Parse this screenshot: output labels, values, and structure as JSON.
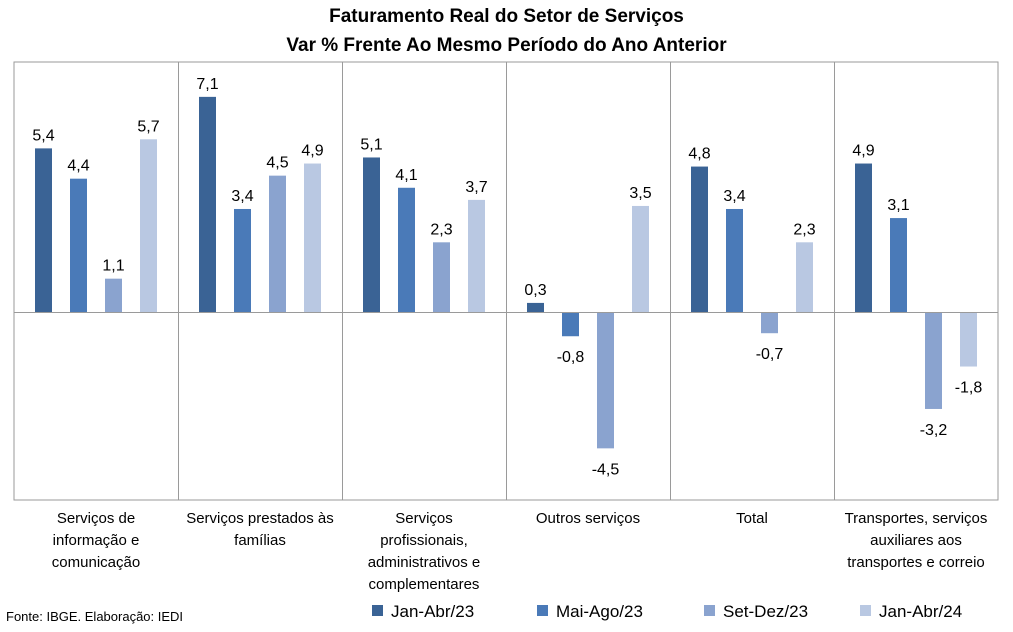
{
  "chart_data": {
    "type": "bar",
    "title": "Faturamento Real do Setor de Serviços",
    "subtitle": "Var % Frente Ao Mesmo Período do Ano Anterior",
    "categories": [
      "Serviços de informação e comunicação",
      "Serviços prestados às famílias",
      "Serviços profissionais, administrativos e complementares",
      "Outros serviços",
      "Total",
      "Transportes, serviços auxiliares aos transportes e correio"
    ],
    "series": [
      {
        "name": "Jan-Abr/23",
        "color": "#3a6395",
        "values": [
          5.4,
          7.1,
          5.1,
          0.3,
          4.8,
          4.9
        ],
        "labels": [
          "5,4",
          "7,1",
          "5,1",
          "0,3",
          "4,8",
          "4,9"
        ]
      },
      {
        "name": "Mai-Ago/23",
        "color": "#4a7ab8",
        "values": [
          4.4,
          3.4,
          4.1,
          -0.8,
          3.4,
          3.1
        ],
        "labels": [
          "4,4",
          "3,4",
          "4,1",
          "-0,8",
          "3,4",
          "3,1"
        ]
      },
      {
        "name": "Set-Dez/23",
        "color": "#8aa3cf",
        "values": [
          1.1,
          4.5,
          2.3,
          -4.5,
          -0.7,
          -3.2
        ],
        "labels": [
          "1,1",
          "4,5",
          "2,3",
          "-4,5",
          "-0,7",
          "-3,2"
        ]
      },
      {
        "name": "Jan-Abr/24",
        "color": "#b9c8e2",
        "values": [
          5.7,
          4.9,
          3.7,
          3.5,
          2.3,
          -1.8
        ],
        "labels": [
          "5,7",
          "4,9",
          "3,7",
          "3,5",
          "2,3",
          "-1,8"
        ]
      }
    ],
    "legend": "bottom",
    "grid": false,
    "source": "Fonte: IBGE. Elaboração: IEDI"
  }
}
